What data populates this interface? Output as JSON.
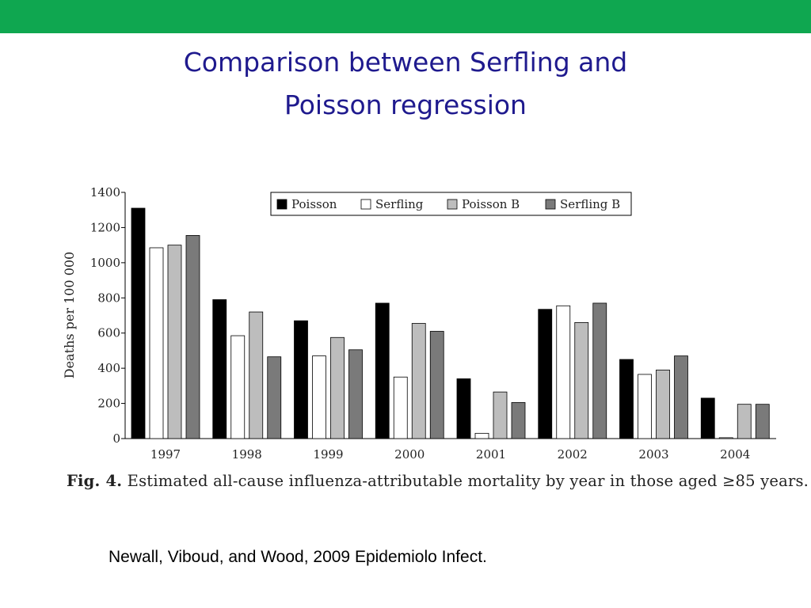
{
  "slide": {
    "accent_color": "#0FA750",
    "title_color": "#1F1A8E",
    "title_line1": "Comparison between Serfling and",
    "title_line2": "Poisson regression",
    "caption_label": "Fig. 4.",
    "caption_text": "Estimated all-cause influenza-attributable mortality by year in those aged ≥85 years.",
    "citation": "Newall, Viboud, and Wood, 2009 Epidemiolo Infect."
  },
  "chart_data": {
    "type": "bar",
    "title": "",
    "xlabel": "",
    "ylabel": "Deaths per 100 000",
    "ylim": [
      0,
      1400
    ],
    "yticks": [
      0,
      200,
      400,
      600,
      800,
      1000,
      1200,
      1400
    ],
    "grid": false,
    "legend_position": "top-right",
    "categories": [
      "1997",
      "1998",
      "1999",
      "2000",
      "2001",
      "2002",
      "2003",
      "2004"
    ],
    "series": [
      {
        "name": "Poisson",
        "color": "#000000",
        "values": [
          1310,
          790,
          670,
          770,
          340,
          735,
          450,
          230
        ]
      },
      {
        "name": "Serfling",
        "color": "#ffffff",
        "values": [
          1085,
          585,
          470,
          350,
          30,
          755,
          365,
          5
        ]
      },
      {
        "name": "Poisson B",
        "color": "#bdbdbd",
        "values": [
          1100,
          720,
          575,
          655,
          265,
          660,
          390,
          195
        ]
      },
      {
        "name": "Serfling B",
        "color": "#7a7a7a",
        "values": [
          1155,
          465,
          505,
          610,
          205,
          770,
          470,
          195
        ]
      }
    ]
  }
}
